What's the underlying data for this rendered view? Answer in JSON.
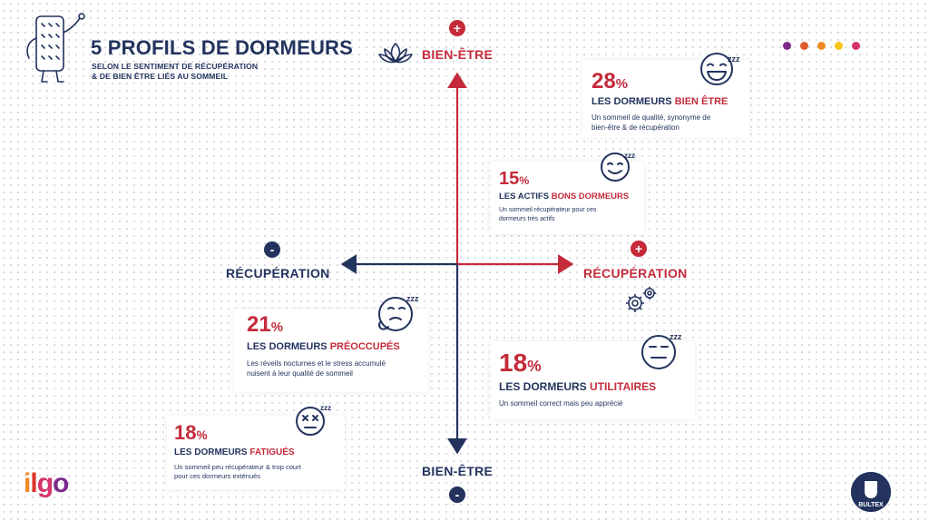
{
  "header": {
    "title": "5 PROFILS DE DORMEURS",
    "subtitle_line1": "SELON LE SENTIMENT DE RÉCUPÉRATION",
    "subtitle_line2": "& DE BIEN ÊTRE LIÉS AU SOMMEIL"
  },
  "axes": {
    "top_label": "BIEN-ÊTRE",
    "top_sign": "+",
    "bottom_label": "BIEN-ÊTRE",
    "bottom_sign": "-",
    "left_label": "RÉCUPÉRATION",
    "left_sign": "-",
    "right_label": "RÉCUPÉRATION",
    "right_sign": "+"
  },
  "profiles": [
    {
      "pct_num": "28",
      "pct_sym": "%",
      "title_prefix": "LES DORMEURS",
      "title_accent": "BIEN ÊTRE",
      "desc_1": "Un sommeil de qualité, synonyme de",
      "desc_2": "bien-être & de récupération",
      "icon": "laughing-sleep-face-icon"
    },
    {
      "pct_num": "15",
      "pct_sym": "%",
      "title_prefix": "LES ACTIFS",
      "title_accent": "BONS DORMEURS",
      "desc_1": "Un sommeil récupérateur pour ces",
      "desc_2": "dormeurs très actifs",
      "icon": "smiling-sleep-face-icon"
    },
    {
      "pct_num": "21",
      "pct_sym": "%",
      "title_prefix": "LES DORMEURS",
      "title_accent": "PRÉOCCUPÉS",
      "desc_1": "Les réveils nocturnes et le stress accumulé",
      "desc_2": "nuisent à leur qualité de sommeil",
      "icon": "worried-sleep-face-icon"
    },
    {
      "pct_num": "18",
      "pct_sym": "%",
      "title_prefix": "LES DORMEURS",
      "title_accent": "UTILITAIRES",
      "desc_1": "Un sommeil correct mais peu apprécié",
      "desc_2": "",
      "icon": "neutral-sleep-face-icon"
    },
    {
      "pct_num": "18",
      "pct_sym": "%",
      "title_prefix": "LES DORMEURS",
      "title_accent": "FATIGUÉS",
      "desc_1": "Un sommeil peu récupérateur & trop court",
      "desc_2": "pour ces dormeurs exténués",
      "icon": "exhausted-sleep-face-icon"
    }
  ],
  "decor_dots": [
    "#7b2a8c",
    "#e05a2b",
    "#f08a24",
    "#f5c518",
    "#d6336c"
  ],
  "brands": {
    "left": "ilgo",
    "right": "BULTEX"
  },
  "colors": {
    "navy": "#23335e",
    "red": "#c42a3a"
  }
}
